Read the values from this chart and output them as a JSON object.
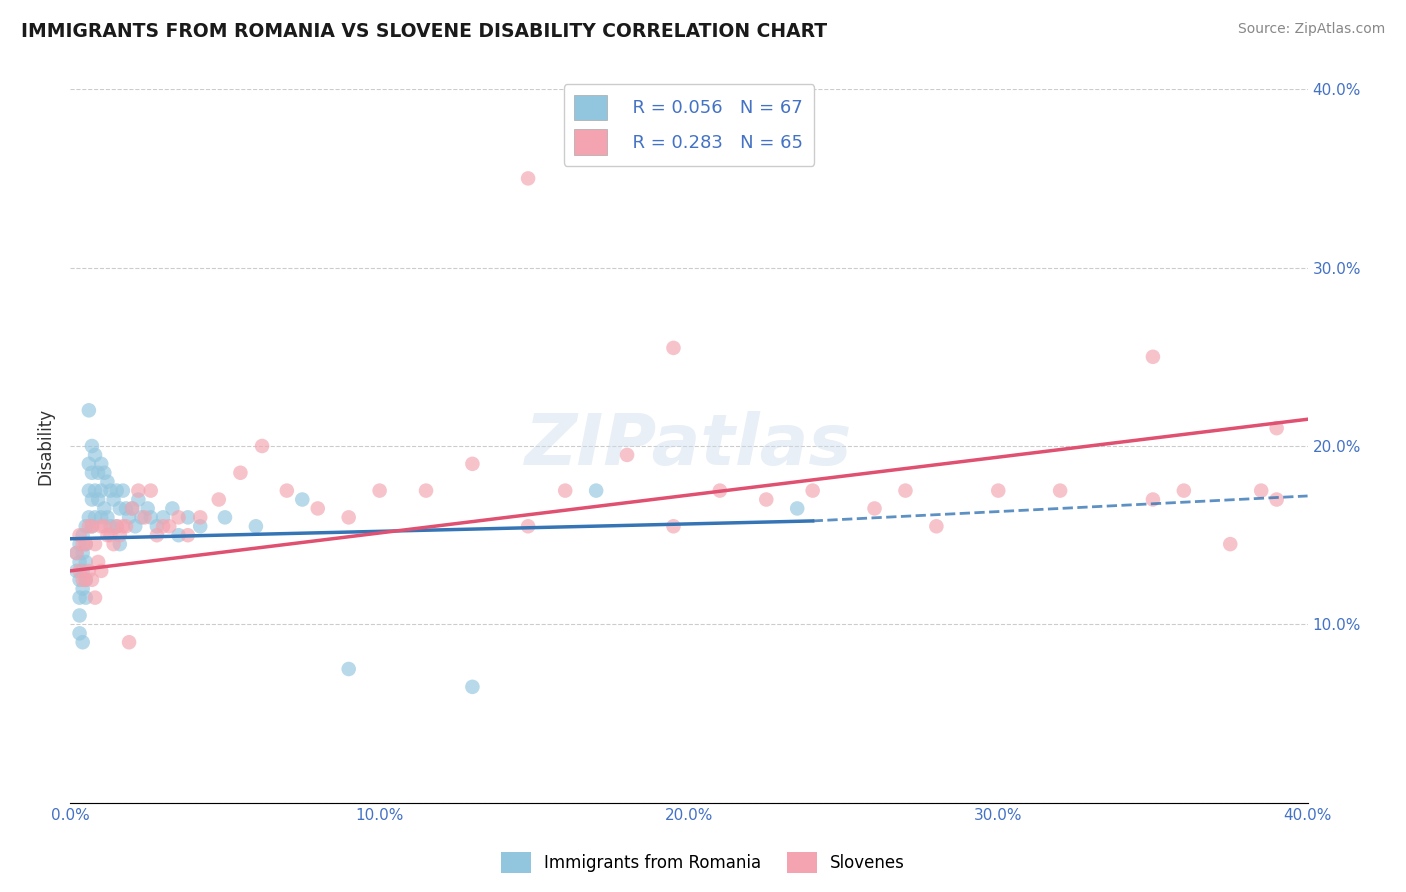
{
  "title": "IMMIGRANTS FROM ROMANIA VS SLOVENE DISABILITY CORRELATION CHART",
  "source": "Source: ZipAtlas.com",
  "ylabel_label": "Disability",
  "x_min": 0.0,
  "x_max": 0.4,
  "y_min": 0.0,
  "y_max": 0.4,
  "x_ticks": [
    0.0,
    0.1,
    0.2,
    0.3,
    0.4
  ],
  "x_tick_labels": [
    "0.0%",
    "10.0%",
    "20.0%",
    "30.0%",
    "40.0%"
  ],
  "y_ticks": [
    0.1,
    0.2,
    0.3,
    0.4
  ],
  "y_tick_labels": [
    "10.0%",
    "20.0%",
    "30.0%",
    "40.0%"
  ],
  "watermark": "ZIPatlas",
  "legend_r1": "R = 0.056",
  "legend_n1": "N = 67",
  "legend_r2": "R = 0.283",
  "legend_n2": "N = 65",
  "legend_label1": "Immigrants from Romania",
  "legend_label2": "Slovenes",
  "blue_color": "#92c5de",
  "pink_color": "#f4a4b0",
  "regression_blue": "#3575b5",
  "regression_pink": "#e05070",
  "blue_scatter_x": [
    0.002,
    0.002,
    0.003,
    0.003,
    0.003,
    0.003,
    0.003,
    0.003,
    0.004,
    0.004,
    0.004,
    0.004,
    0.004,
    0.005,
    0.005,
    0.005,
    0.005,
    0.005,
    0.006,
    0.006,
    0.006,
    0.006,
    0.007,
    0.007,
    0.007,
    0.007,
    0.008,
    0.008,
    0.008,
    0.009,
    0.009,
    0.01,
    0.01,
    0.01,
    0.011,
    0.011,
    0.012,
    0.012,
    0.013,
    0.013,
    0.014,
    0.015,
    0.015,
    0.016,
    0.016,
    0.017,
    0.018,
    0.019,
    0.02,
    0.021,
    0.022,
    0.023,
    0.025,
    0.026,
    0.028,
    0.03,
    0.033,
    0.035,
    0.038,
    0.042,
    0.05,
    0.06,
    0.075,
    0.09,
    0.13,
    0.17,
    0.235
  ],
  "blue_scatter_y": [
    0.14,
    0.13,
    0.145,
    0.135,
    0.125,
    0.115,
    0.105,
    0.095,
    0.15,
    0.14,
    0.13,
    0.12,
    0.09,
    0.155,
    0.145,
    0.135,
    0.125,
    0.115,
    0.22,
    0.19,
    0.175,
    0.16,
    0.2,
    0.185,
    0.17,
    0.155,
    0.195,
    0.175,
    0.16,
    0.185,
    0.17,
    0.19,
    0.175,
    0.16,
    0.185,
    0.165,
    0.18,
    0.16,
    0.175,
    0.155,
    0.17,
    0.175,
    0.155,
    0.165,
    0.145,
    0.175,
    0.165,
    0.16,
    0.165,
    0.155,
    0.17,
    0.16,
    0.165,
    0.16,
    0.155,
    0.16,
    0.165,
    0.15,
    0.16,
    0.155,
    0.16,
    0.155,
    0.17,
    0.075,
    0.065,
    0.175,
    0.165
  ],
  "pink_scatter_x": [
    0.002,
    0.003,
    0.003,
    0.004,
    0.004,
    0.005,
    0.005,
    0.006,
    0.006,
    0.007,
    0.007,
    0.008,
    0.008,
    0.009,
    0.01,
    0.01,
    0.011,
    0.012,
    0.013,
    0.014,
    0.015,
    0.016,
    0.017,
    0.018,
    0.019,
    0.02,
    0.022,
    0.024,
    0.026,
    0.028,
    0.03,
    0.032,
    0.035,
    0.038,
    0.042,
    0.048,
    0.055,
    0.062,
    0.07,
    0.08,
    0.09,
    0.1,
    0.115,
    0.13,
    0.148,
    0.16,
    0.18,
    0.195,
    0.21,
    0.225,
    0.24,
    0.26,
    0.28,
    0.3,
    0.32,
    0.35,
    0.36,
    0.375,
    0.385,
    0.39,
    0.148,
    0.195,
    0.27,
    0.35,
    0.39
  ],
  "pink_scatter_y": [
    0.14,
    0.15,
    0.13,
    0.145,
    0.125,
    0.145,
    0.125,
    0.155,
    0.13,
    0.155,
    0.125,
    0.145,
    0.115,
    0.135,
    0.155,
    0.13,
    0.155,
    0.15,
    0.15,
    0.145,
    0.155,
    0.15,
    0.155,
    0.155,
    0.09,
    0.165,
    0.175,
    0.16,
    0.175,
    0.15,
    0.155,
    0.155,
    0.16,
    0.15,
    0.16,
    0.17,
    0.185,
    0.2,
    0.175,
    0.165,
    0.16,
    0.175,
    0.175,
    0.19,
    0.155,
    0.175,
    0.195,
    0.155,
    0.175,
    0.17,
    0.175,
    0.165,
    0.155,
    0.175,
    0.175,
    0.17,
    0.175,
    0.145,
    0.175,
    0.17,
    0.35,
    0.255,
    0.175,
    0.25,
    0.21
  ]
}
